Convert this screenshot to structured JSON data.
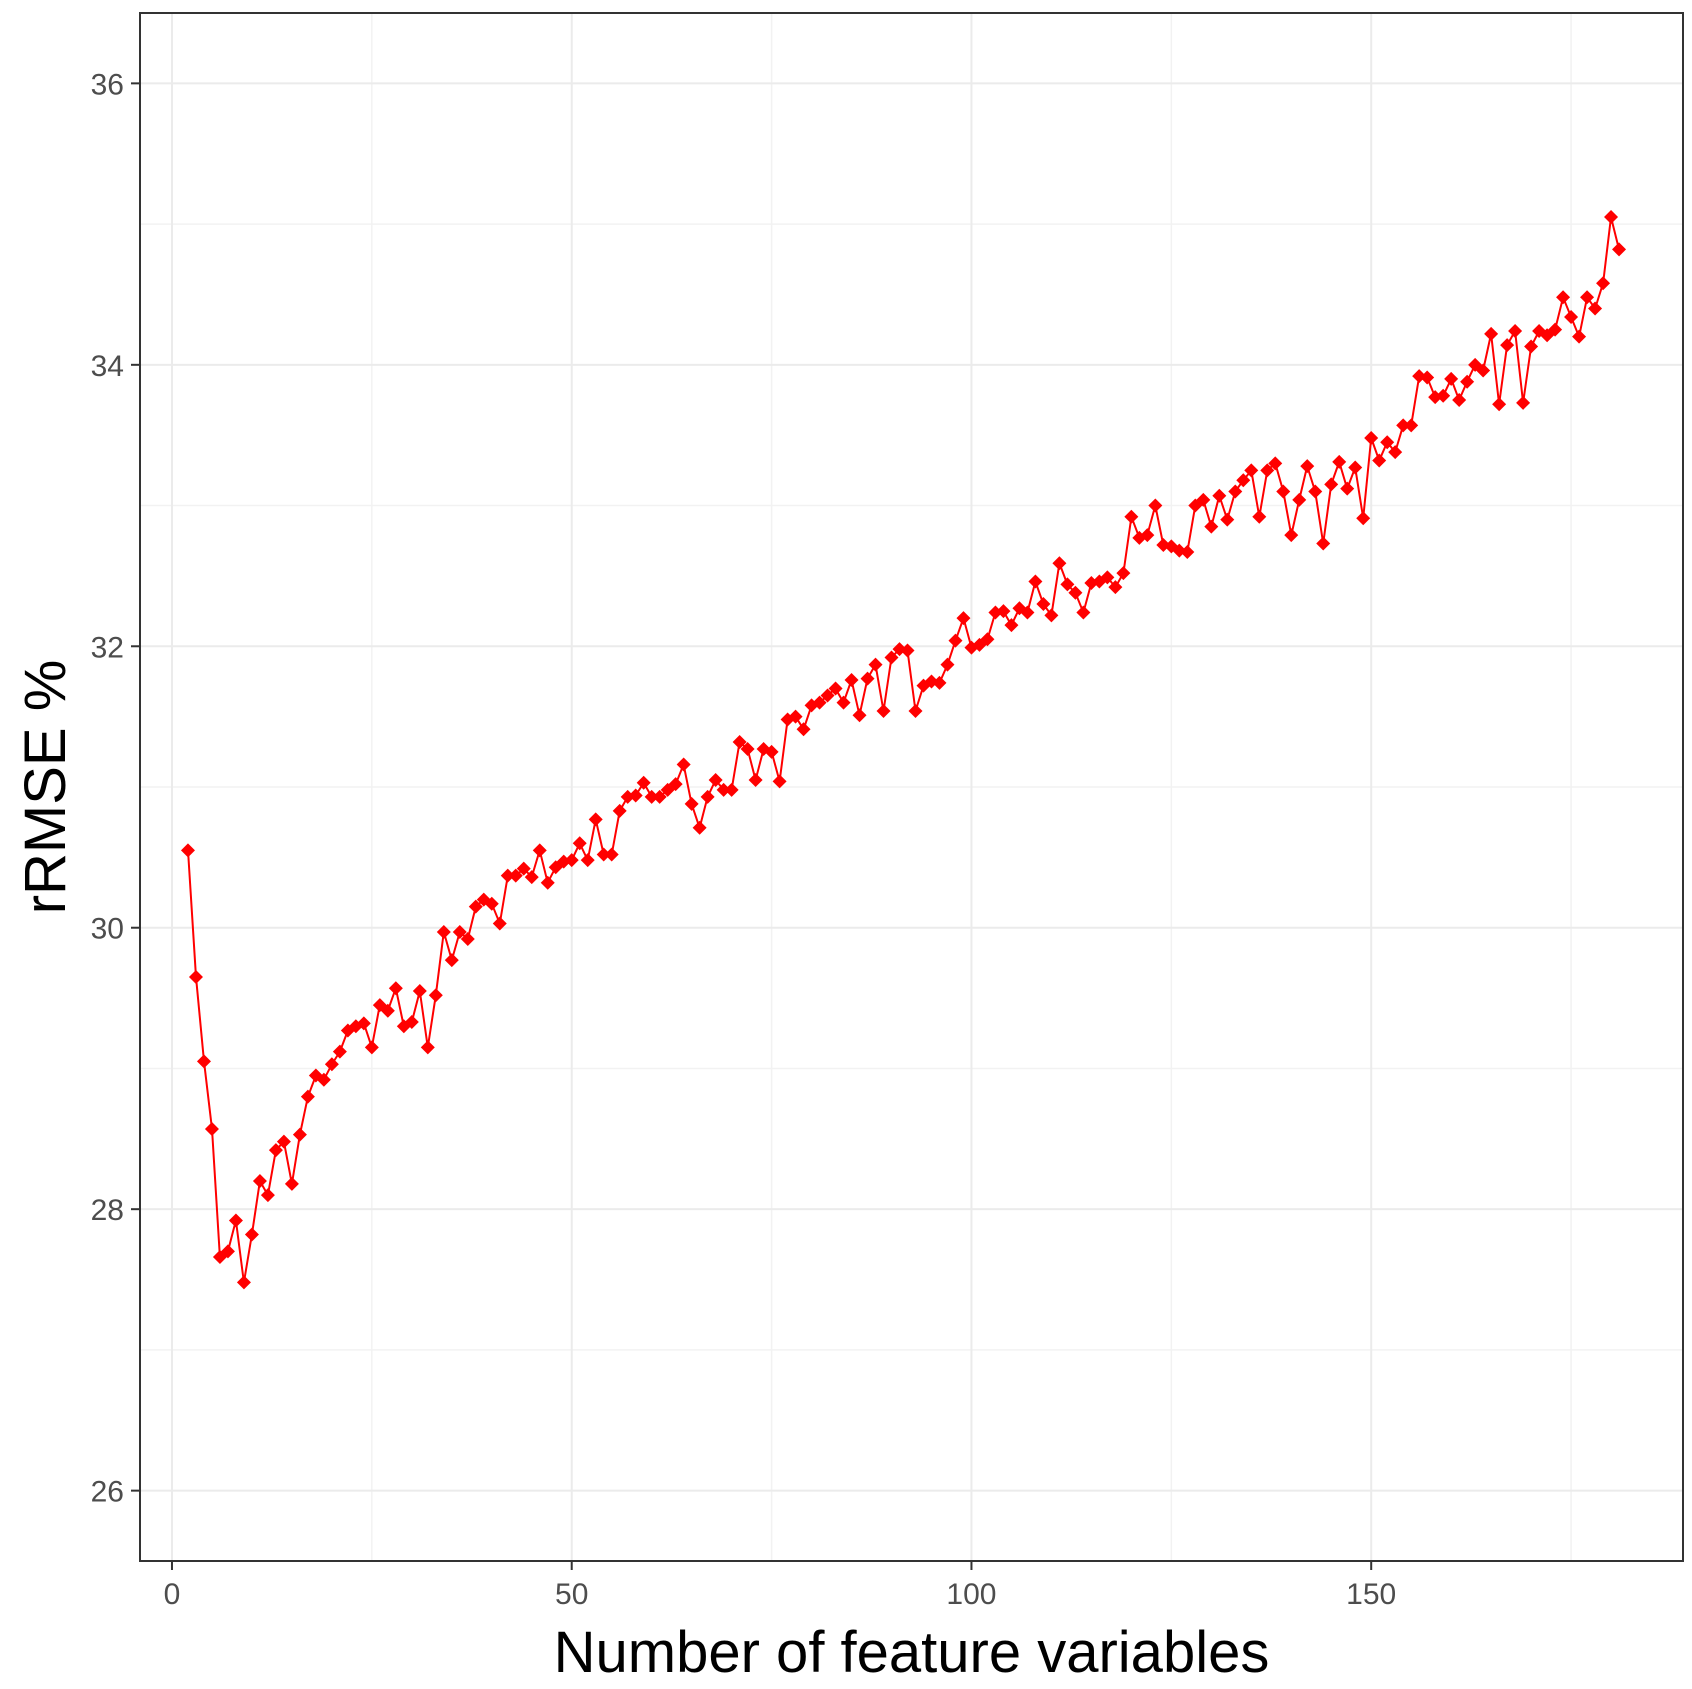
{
  "chart_data": {
    "type": "line",
    "title": "",
    "xlabel": "Number of feature variables",
    "ylabel": "rRMSE %",
    "xlim": [
      -4,
      189
    ],
    "ylim": [
      25.5,
      36.5
    ],
    "x_ticks": [
      0,
      50,
      100,
      150
    ],
    "y_ticks": [
      26,
      28,
      30,
      32,
      34,
      36
    ],
    "grid": true,
    "legend": "none",
    "series": [
      {
        "color": "#ff0000",
        "marker": "diamond",
        "x": [
          2,
          3,
          4,
          5,
          6,
          7,
          8,
          9,
          10,
          11,
          12,
          13,
          14,
          15,
          16,
          17,
          18,
          19,
          20,
          21,
          22,
          23,
          24,
          25,
          26,
          27,
          28,
          29,
          30,
          31,
          32,
          33,
          34,
          35,
          36,
          37,
          38,
          39,
          40,
          41,
          42,
          43,
          44,
          45,
          46,
          47,
          48,
          49,
          50,
          51,
          52,
          53,
          54,
          55,
          56,
          57,
          58,
          59,
          60,
          61,
          62,
          63,
          64,
          65,
          66,
          67,
          68,
          69,
          70,
          71,
          72,
          73,
          74,
          75,
          76,
          77,
          78,
          79,
          80,
          81,
          82,
          83,
          84,
          85,
          86,
          87,
          88,
          89,
          90,
          91,
          92,
          93,
          94,
          95,
          96,
          97,
          98,
          99,
          100,
          101,
          102,
          103,
          104,
          105,
          106,
          107,
          108,
          109,
          110,
          111,
          112,
          113,
          114,
          115,
          116,
          117,
          118,
          119,
          120,
          121,
          122,
          123,
          124,
          125,
          126,
          127,
          128,
          129,
          130,
          131,
          132,
          133,
          134,
          135,
          136,
          137,
          138,
          139,
          140,
          141,
          142,
          143,
          144,
          145,
          146,
          147,
          148,
          149,
          150,
          151,
          152,
          153,
          154,
          155,
          156,
          157,
          158,
          159,
          160,
          161,
          162,
          163,
          164,
          165,
          166,
          167,
          168,
          169,
          170,
          171,
          172,
          173,
          174,
          175,
          176,
          177,
          178,
          179,
          180,
          181
        ],
        "values": [
          30.55,
          29.65,
          29.05,
          28.57,
          27.66,
          27.7,
          27.92,
          27.48,
          27.82,
          28.2,
          28.1,
          28.42,
          28.48,
          28.18,
          28.53,
          28.8,
          28.95,
          28.92,
          29.03,
          29.12,
          29.27,
          29.3,
          29.32,
          29.15,
          29.45,
          29.41,
          29.57,
          29.3,
          29.33,
          29.55,
          29.15,
          29.52,
          29.97,
          29.77,
          29.97,
          29.92,
          30.15,
          30.2,
          30.17,
          30.03,
          30.37,
          30.37,
          30.42,
          30.36,
          30.55,
          30.32,
          30.43,
          30.47,
          30.48,
          30.6,
          30.48,
          30.77,
          30.52,
          30.52,
          30.83,
          30.93,
          30.94,
          31.03,
          30.93,
          30.93,
          30.98,
          31.02,
          31.16,
          30.88,
          30.71,
          30.93,
          31.05,
          30.98,
          30.98,
          31.32,
          31.27,
          31.05,
          31.27,
          31.25,
          31.04,
          31.48,
          31.5,
          31.41,
          31.58,
          31.6,
          31.65,
          31.7,
          31.6,
          31.76,
          31.51,
          31.77,
          31.87,
          31.54,
          31.92,
          31.98,
          31.97,
          31.54,
          31.72,
          31.75,
          31.74,
          31.87,
          32.04,
          32.2,
          31.99,
          32.01,
          32.05,
          32.24,
          32.25,
          32.15,
          32.27,
          32.24,
          32.46,
          32.3,
          32.22,
          32.59,
          32.44,
          32.38,
          32.24,
          32.45,
          32.46,
          32.49,
          32.42,
          32.52,
          32.92,
          32.77,
          32.79,
          33.0,
          32.72,
          32.71,
          32.68,
          32.67,
          33.0,
          33.04,
          32.85,
          33.07,
          32.9,
          33.1,
          33.18,
          33.25,
          32.92,
          33.25,
          33.3,
          33.1,
          32.79,
          33.04,
          33.28,
          33.1,
          32.73,
          33.15,
          33.31,
          33.12,
          33.27,
          32.91,
          33.48,
          33.32,
          33.45,
          33.38,
          33.57,
          33.57,
          33.92,
          33.91,
          33.77,
          33.78,
          33.9,
          33.75,
          33.88,
          34.0,
          33.96,
          34.22,
          33.72,
          34.14,
          34.24,
          33.73,
          34.13,
          34.24,
          34.21,
          34.25,
          34.48,
          34.34,
          34.2,
          34.48,
          34.4,
          34.58,
          35.05,
          34.82
        ]
      }
    ]
  }
}
